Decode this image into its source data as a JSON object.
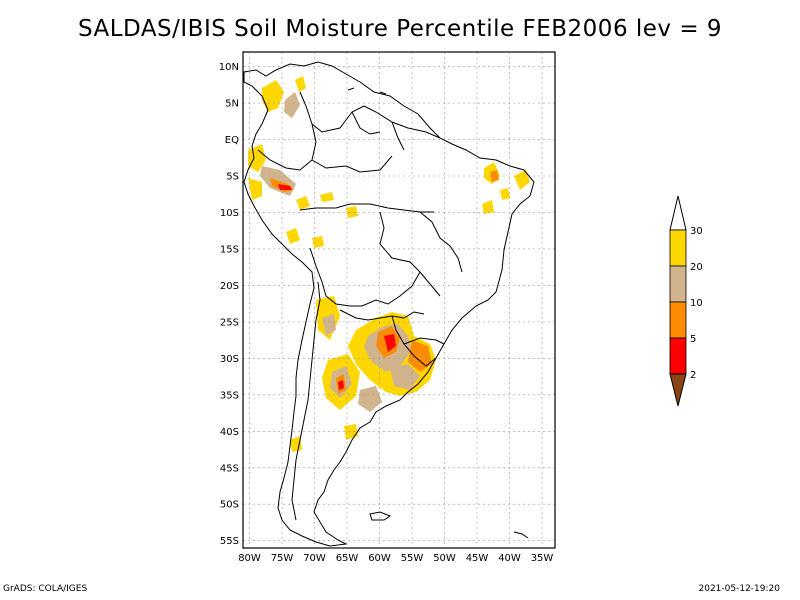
{
  "title": "SALDAS/IBIS Soil Moisture Percentile FEB2006 lev = 9",
  "footer": {
    "left": "GrADS: COLA/IGES",
    "right": "2021-05-12-19:20"
  },
  "map": {
    "lat_labels": [
      "10N",
      "5N",
      "EQ",
      "5S",
      "10S",
      "15S",
      "20S",
      "25S",
      "30S",
      "35S",
      "40S",
      "45S",
      "50S",
      "55S"
    ],
    "lon_labels": [
      "80W",
      "75W",
      "70W",
      "65W",
      "60W",
      "55W",
      "50W",
      "45W",
      "40W",
      "35W"
    ],
    "lon_range": [
      -81,
      -33
    ],
    "lat_range": [
      -56,
      12
    ]
  },
  "legend": {
    "labels": [
      "2",
      "5",
      "10",
      "20",
      "30"
    ],
    "colors": [
      "#8b4513",
      "#ff0000",
      "#ff8c00",
      "#d2b48c",
      "#ffd700",
      "#ffffff"
    ]
  },
  "colors": {
    "land_outline": "#000000",
    "grid": "#999999"
  }
}
